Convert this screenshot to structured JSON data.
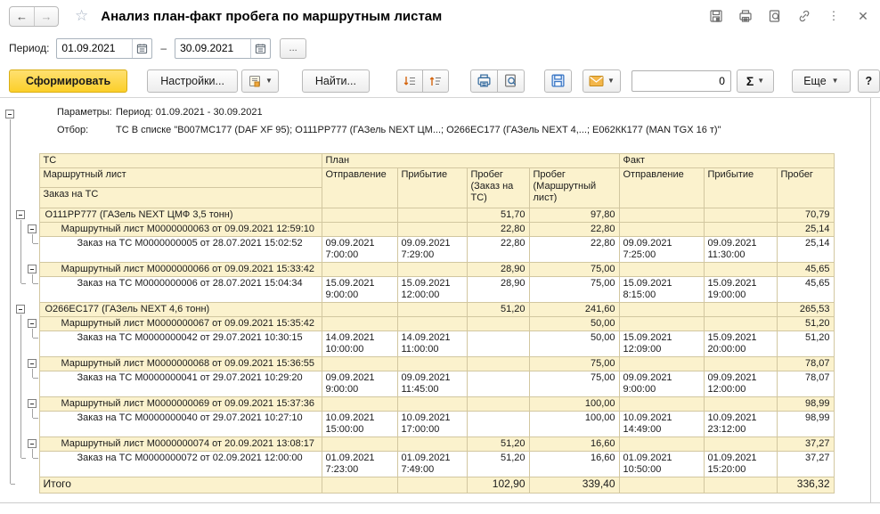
{
  "titlebar": {
    "title": "Анализ план-факт пробега по маршрутным листам",
    "back": "←",
    "forward": "→"
  },
  "period": {
    "label": "Период:",
    "from": "01.09.2021",
    "dash": "–",
    "to": "30.09.2021",
    "more_label": "..."
  },
  "toolbar": {
    "generate": "Сформировать",
    "settings": "Настройки...",
    "find": "Найти...",
    "counter": "0",
    "sigma": "Σ",
    "more": "Еще",
    "help": "?"
  },
  "params": {
    "label1": "Параметры:",
    "value1": "Период: 01.09.2021 - 30.09.2021",
    "label2": "Отбор:",
    "value2": "ТС В списке \"В007МС177 (DAF XF 95); О111РР777 (ГАЗель NEXT ЦМ...; О266ЕС177 (ГАЗель NEXT 4,...; Е062КК177 (MAN TGX  16 т)\""
  },
  "table": {
    "headers": {
      "tc": "ТС",
      "route": "Маршрутный лист",
      "order": "Заказ на ТС",
      "plan": "План",
      "fact": "Факт",
      "dep": "Отправление",
      "arr": "Прибытие",
      "mil_order": "Пробег (Заказ на ТС)",
      "mil_route": "Пробег (Маршрутный лист)",
      "mil": "Пробег"
    },
    "rows": [
      {
        "t": "g1",
        "g0": "line",
        "g1": "box",
        "g2": "",
        "label": "О111РР777 (ГАЗель NEXT ЦМФ 3,5 тонн)",
        "po": "51,70",
        "pm": "97,80",
        "fm": "70,79"
      },
      {
        "t": "g2",
        "g0": "line",
        "g1": "line",
        "g2": "box",
        "label": "Маршрутный лист М0000000063 от 09.09.2021 12:59:10",
        "po": "22,80",
        "pm": "22,80",
        "fm": "25,14"
      },
      {
        "t": "d",
        "g0": "line",
        "g1": "line",
        "g2": "end",
        "label": "Заказ на ТС М0000000005 от 28.07.2021 15:02:52",
        "pd": "09.09.2021\n7:00:00",
        "pa": "09.09.2021\n7:29:00",
        "po": "22,80",
        "pm": "22,80",
        "fd": "09.09.2021\n7:25:00",
        "fa": "09.09.2021\n11:30:00",
        "fm": "25,14"
      },
      {
        "t": "g2",
        "g0": "line",
        "g1": "line",
        "g2": "box",
        "label": "Маршрутный лист М0000000066 от 09.09.2021 15:33:42",
        "po": "28,90",
        "pm": "75,00",
        "fm": "45,65"
      },
      {
        "t": "d",
        "g0": "line",
        "g1": "end",
        "g2": "end",
        "label": "Заказ на ТС М0000000006 от 28.07.2021 15:04:34",
        "pd": "15.09.2021\n9:00:00",
        "pa": "15.09.2021\n12:00:00",
        "po": "28,90",
        "pm": "75,00",
        "fd": "15.09.2021\n8:15:00",
        "fa": "15.09.2021\n19:00:00",
        "fm": "45,65"
      },
      {
        "t": "g1",
        "g0": "line",
        "g1": "box",
        "g2": "",
        "label": "О266ЕС177 (ГАЗель NEXT 4,6 тонн)",
        "po": "51,20",
        "pm": "241,60",
        "fm": "265,53"
      },
      {
        "t": "g2",
        "g0": "line",
        "g1": "line",
        "g2": "box",
        "label": "Маршрутный лист М0000000067 от 09.09.2021 15:35:42",
        "pm": "50,00",
        "fm": "51,20"
      },
      {
        "t": "d",
        "g0": "line",
        "g1": "line",
        "g2": "end",
        "label": "Заказ на ТС М0000000042 от 29.07.2021 10:30:15",
        "pd": "14.09.2021\n10:00:00",
        "pa": "14.09.2021\n11:00:00",
        "pm": "50,00",
        "fd": "15.09.2021\n12:09:00",
        "fa": "15.09.2021\n20:00:00",
        "fm": "51,20"
      },
      {
        "t": "g2",
        "g0": "line",
        "g1": "line",
        "g2": "box",
        "label": "Маршрутный лист М0000000068 от 09.09.2021 15:36:55",
        "pm": "75,00",
        "fm": "78,07"
      },
      {
        "t": "d",
        "g0": "line",
        "g1": "line",
        "g2": "end",
        "label": "Заказ на ТС М0000000041 от 29.07.2021 10:29:20",
        "pd": "09.09.2021\n9:00:00",
        "pa": "09.09.2021\n11:45:00",
        "pm": "75,00",
        "fd": "09.09.2021\n9:00:00",
        "fa": "09.09.2021\n12:00:00",
        "fm": "78,07"
      },
      {
        "t": "g2",
        "g0": "line",
        "g1": "line",
        "g2": "box",
        "label": "Маршрутный лист М0000000069 от 09.09.2021 15:37:36",
        "pm": "100,00",
        "fm": "98,99"
      },
      {
        "t": "d",
        "g0": "line",
        "g1": "line",
        "g2": "end",
        "label": "Заказ на ТС М0000000040 от 29.07.2021 10:27:10",
        "pd": "10.09.2021\n15:00:00",
        "pa": "10.09.2021\n17:00:00",
        "pm": "100,00",
        "fd": "10.09.2021\n14:49:00",
        "fa": "10.09.2021\n23:12:00",
        "fm": "98,99"
      },
      {
        "t": "g2",
        "g0": "line",
        "g1": "line",
        "g2": "box",
        "label": "Маршрутный лист М0000000074 от 20.09.2021 13:08:17",
        "po": "51,20",
        "pm": "16,60",
        "fm": "37,27"
      },
      {
        "t": "d",
        "g0": "line",
        "g1": "end",
        "g2": "end",
        "label": "Заказ на ТС М0000000072 от 02.09.2021 12:00:00",
        "pd": "01.09.2021\n7:23:00",
        "pa": "01.09.2021\n7:49:00",
        "po": "51,20",
        "pm": "16,60",
        "fd": "01.09.2021\n10:50:00",
        "fa": "01.09.2021\n15:20:00",
        "fm": "37,27"
      },
      {
        "t": "total",
        "g0": "end",
        "g1": "",
        "g2": "",
        "label": "Итого",
        "po": "102,90",
        "pm": "339,40",
        "fm": "336,32"
      }
    ]
  }
}
